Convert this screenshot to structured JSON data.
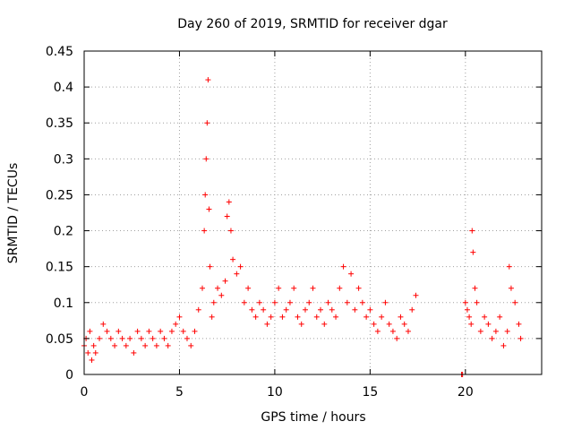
{
  "chart_data": {
    "type": "scatter",
    "title": "Day 260 of 2019, SRMTID for receiver dgar",
    "xlabel": "GPS time / hours",
    "ylabel": "SRMTID / TECUs",
    "xlim": [
      0,
      24
    ],
    "ylim": [
      0,
      0.45
    ],
    "xticks": [
      0,
      5,
      10,
      15,
      20
    ],
    "yticks": [
      0,
      0.05,
      0.1,
      0.15,
      0.2,
      0.25,
      0.3,
      0.35,
      0.4,
      0.45
    ],
    "grid": true,
    "marker": "+",
    "color": "#ff0000",
    "series": [
      {
        "name": "SRMTID",
        "x": [
          0.0,
          0.1,
          0.2,
          0.3,
          0.4,
          0.5,
          0.6,
          0.8,
          1.0,
          1.2,
          1.4,
          1.6,
          1.8,
          2.0,
          2.2,
          2.4,
          2.6,
          2.8,
          3.0,
          3.2,
          3.4,
          3.6,
          3.8,
          4.0,
          4.2,
          4.4,
          4.6,
          4.8,
          5.0,
          5.2,
          5.4,
          5.6,
          5.8,
          6.0,
          6.2,
          6.3,
          6.35,
          6.4,
          6.45,
          6.5,
          6.55,
          6.6,
          6.7,
          6.8,
          7.0,
          7.2,
          7.4,
          7.5,
          7.6,
          7.7,
          7.8,
          8.0,
          8.2,
          8.4,
          8.6,
          8.8,
          9.0,
          9.2,
          9.4,
          9.6,
          9.8,
          10.0,
          10.2,
          10.4,
          10.6,
          10.8,
          11.0,
          11.2,
          11.4,
          11.6,
          11.8,
          12.0,
          12.2,
          12.4,
          12.6,
          12.8,
          13.0,
          13.2,
          13.4,
          13.6,
          13.8,
          14.0,
          14.2,
          14.4,
          14.6,
          14.8,
          15.0,
          15.2,
          15.4,
          15.6,
          15.8,
          16.0,
          16.2,
          16.4,
          16.6,
          16.8,
          17.0,
          17.2,
          17.4,
          19.8,
          19.85,
          20.0,
          20.1,
          20.2,
          20.3,
          20.35,
          20.4,
          20.5,
          20.6,
          20.8,
          21.0,
          21.2,
          21.4,
          21.6,
          21.8,
          22.0,
          22.2,
          22.3,
          22.4,
          22.6,
          22.8,
          22.9
        ],
        "y": [
          0.04,
          0.05,
          0.03,
          0.06,
          0.02,
          0.04,
          0.03,
          0.05,
          0.07,
          0.06,
          0.05,
          0.04,
          0.06,
          0.05,
          0.04,
          0.05,
          0.03,
          0.06,
          0.05,
          0.04,
          0.06,
          0.05,
          0.04,
          0.06,
          0.05,
          0.04,
          0.06,
          0.07,
          0.08,
          0.06,
          0.05,
          0.04,
          0.06,
          0.09,
          0.12,
          0.2,
          0.25,
          0.3,
          0.35,
          0.41,
          0.23,
          0.15,
          0.08,
          0.1,
          0.12,
          0.11,
          0.13,
          0.22,
          0.24,
          0.2,
          0.16,
          0.14,
          0.15,
          0.1,
          0.12,
          0.09,
          0.08,
          0.1,
          0.09,
          0.07,
          0.08,
          0.1,
          0.12,
          0.08,
          0.09,
          0.1,
          0.12,
          0.08,
          0.07,
          0.09,
          0.1,
          0.12,
          0.08,
          0.09,
          0.07,
          0.1,
          0.09,
          0.08,
          0.12,
          0.15,
          0.1,
          0.14,
          0.09,
          0.12,
          0.1,
          0.08,
          0.09,
          0.07,
          0.06,
          0.08,
          0.1,
          0.07,
          0.06,
          0.05,
          0.08,
          0.07,
          0.06,
          0.09,
          0.11,
          0.0,
          0.0,
          0.1,
          0.09,
          0.08,
          0.07,
          0.2,
          0.17,
          0.12,
          0.1,
          0.06,
          0.08,
          0.07,
          0.05,
          0.06,
          0.08,
          0.04,
          0.06,
          0.15,
          0.12,
          0.1,
          0.07,
          0.05
        ]
      }
    ]
  }
}
